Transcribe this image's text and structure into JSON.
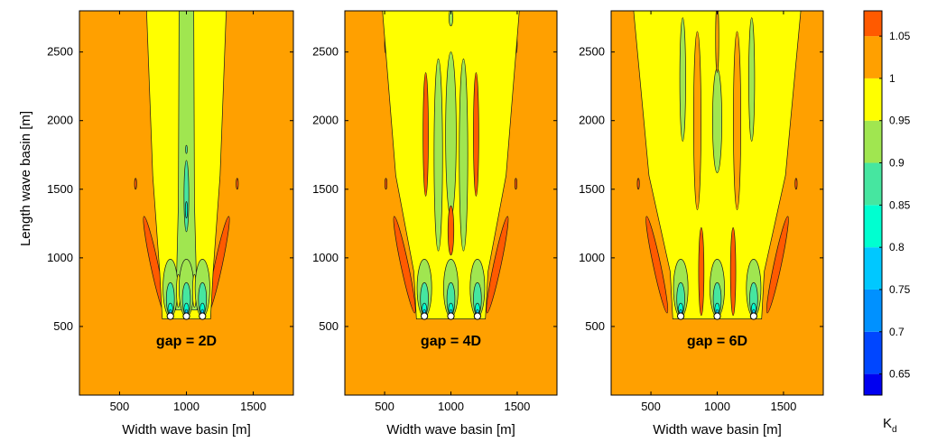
{
  "figure": {
    "ylabel": "Length wave basin [m]",
    "colorbar_label_main": "K",
    "colorbar_label_sub": "d"
  },
  "chart_data": [
    {
      "type": "heatmap",
      "annotation": "gap = 2D",
      "gap_diameters": 2,
      "xlabel": "Width wave basin [m]",
      "ylabel": "Length wave basin [m]",
      "xlim": [
        200,
        1800
      ],
      "ylim": [
        0,
        2800
      ],
      "xticks": [
        500,
        1000,
        1500
      ],
      "yticks": [
        500,
        1000,
        1500,
        2000,
        2500
      ],
      "device_x": [
        880,
        1000,
        1120
      ],
      "device_y": 575
    },
    {
      "type": "heatmap",
      "annotation": "gap = 4D",
      "gap_diameters": 4,
      "xlabel": "Width wave basin [m]",
      "ylabel": "",
      "xlim": [
        200,
        1800
      ],
      "ylim": [
        0,
        2800
      ],
      "xticks": [
        500,
        1000,
        1500
      ],
      "yticks": [
        500,
        1000,
        1500,
        2000,
        2500
      ],
      "device_x": [
        800,
        1000,
        1200
      ],
      "device_y": 575
    },
    {
      "type": "heatmap",
      "annotation": "gap = 6D",
      "gap_diameters": 6,
      "xlabel": "Width wave basin [m]",
      "ylabel": "",
      "xlim": [
        200,
        1800
      ],
      "ylim": [
        0,
        2800
      ],
      "xticks": [
        500,
        1000,
        1500
      ],
      "yticks": [
        500,
        1000,
        1500,
        2000,
        2500
      ],
      "device_x": [
        725,
        1000,
        1275
      ],
      "device_y": 575
    }
  ],
  "colorbar": {
    "label": "Kd",
    "tick_labels": [
      "1.05",
      "1",
      "0.95",
      "0.9",
      "0.85",
      "0.8",
      "0.75",
      "0.7",
      "0.65"
    ],
    "bands": [
      {
        "min": 0.625,
        "max": 0.65,
        "color": "#0000f0"
      },
      {
        "min": 0.65,
        "max": 0.7,
        "color": "#0046ff"
      },
      {
        "min": 0.7,
        "max": 0.75,
        "color": "#0091ff"
      },
      {
        "min": 0.75,
        "max": 0.8,
        "color": "#00c8ff"
      },
      {
        "min": 0.8,
        "max": 0.85,
        "color": "#00ffd0"
      },
      {
        "min": 0.85,
        "max": 0.9,
        "color": "#46e6a0"
      },
      {
        "min": 0.9,
        "max": 0.95,
        "color": "#a0e650"
      },
      {
        "min": 0.95,
        "max": 1.0,
        "color": "#ffff00"
      },
      {
        "min": 1.0,
        "max": 1.05,
        "color": "#ffa000"
      },
      {
        "min": 1.05,
        "max": 1.08,
        "color": "#ff5a00"
      }
    ]
  }
}
